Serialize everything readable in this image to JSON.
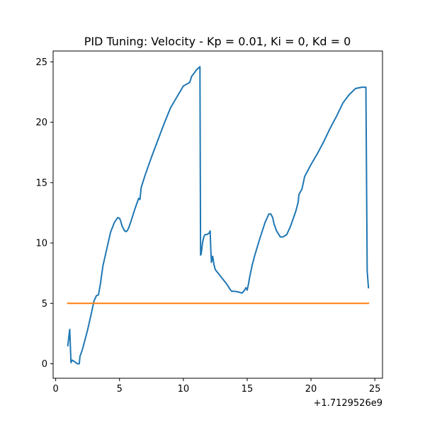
{
  "chart_data": {
    "type": "line",
    "title": "PID Tuning: Velocity - Kp = 0.01, Ki = 0, Kd = 0",
    "xlabel": "",
    "ylabel": "",
    "x_offset_label": "+1.7129526e9",
    "xlim": [
      -0.2,
      25.6
    ],
    "ylim": [
      -1.2,
      25.9
    ],
    "xticks": [
      0,
      5,
      10,
      15,
      20,
      25
    ],
    "yticks": [
      0,
      5,
      10,
      15,
      20,
      25
    ],
    "grid": false,
    "legend": "none",
    "series": [
      {
        "color": "#1f77b4",
        "x": [
          0.95,
          1.1,
          1.2,
          1.3,
          1.5,
          1.7,
          1.85,
          1.9,
          2.1,
          2.3,
          2.5,
          2.8,
          3.0,
          3.2,
          3.35,
          3.5,
          3.7,
          4.0,
          4.3,
          4.6,
          4.85,
          5.0,
          5.1,
          5.2,
          5.4,
          5.55,
          5.7,
          5.9,
          6.2,
          6.5,
          6.6,
          6.7,
          7.0,
          7.5,
          8.0,
          8.5,
          9.0,
          9.5,
          10.0,
          10.5,
          10.65,
          10.8,
          11.0,
          11.3,
          11.35,
          11.4,
          11.5,
          11.6,
          11.7,
          11.85,
          12.0,
          12.1,
          12.15,
          12.2,
          12.3,
          12.4,
          12.5,
          12.8,
          13.1,
          13.4,
          13.7,
          13.8,
          14.0,
          14.3,
          14.6,
          14.8,
          14.9,
          15.0,
          15.1,
          15.2,
          15.4,
          15.6,
          16.0,
          16.4,
          16.7,
          16.85,
          17.0,
          17.1,
          17.3,
          17.6,
          17.8,
          18.1,
          18.4,
          18.8,
          19.0,
          19.05,
          19.3,
          19.5,
          20.0,
          20.5,
          21.0,
          21.5,
          22.0,
          22.5,
          23.0,
          23.5,
          24.0,
          24.3,
          24.4,
          24.5
        ],
        "y": [
          1.5,
          2.85,
          0.1,
          0.3,
          0.15,
          0.0,
          0.0,
          0.6,
          1.2,
          2.0,
          2.8,
          4.2,
          5.2,
          5.65,
          5.7,
          6.6,
          8.1,
          9.5,
          10.9,
          11.7,
          12.1,
          12.05,
          11.8,
          11.4,
          11.0,
          10.95,
          11.2,
          11.8,
          12.8,
          13.7,
          13.6,
          14.6,
          15.6,
          17.1,
          18.5,
          19.9,
          21.2,
          22.1,
          23.0,
          23.3,
          23.8,
          24.0,
          24.3,
          24.6,
          9.0,
          9.1,
          10.0,
          10.5,
          10.7,
          10.7,
          10.8,
          11.0,
          9.5,
          8.4,
          8.9,
          8.2,
          7.8,
          7.4,
          7.0,
          6.6,
          6.1,
          6.0,
          6.0,
          5.95,
          5.85,
          6.1,
          6.3,
          6.1,
          6.6,
          7.2,
          8.2,
          9.0,
          10.4,
          11.7,
          12.4,
          12.4,
          12.1,
          11.6,
          11.0,
          10.5,
          10.5,
          10.7,
          11.4,
          12.6,
          13.4,
          14.0,
          14.5,
          15.5,
          16.5,
          17.4,
          18.4,
          19.5,
          20.5,
          21.6,
          22.3,
          22.8,
          22.9,
          22.9,
          7.7,
          6.3
        ]
      },
      {
        "color": "#ff7f0e",
        "x": [
          0.95,
          24.5
        ],
        "y": [
          5.0,
          5.0
        ]
      }
    ]
  }
}
